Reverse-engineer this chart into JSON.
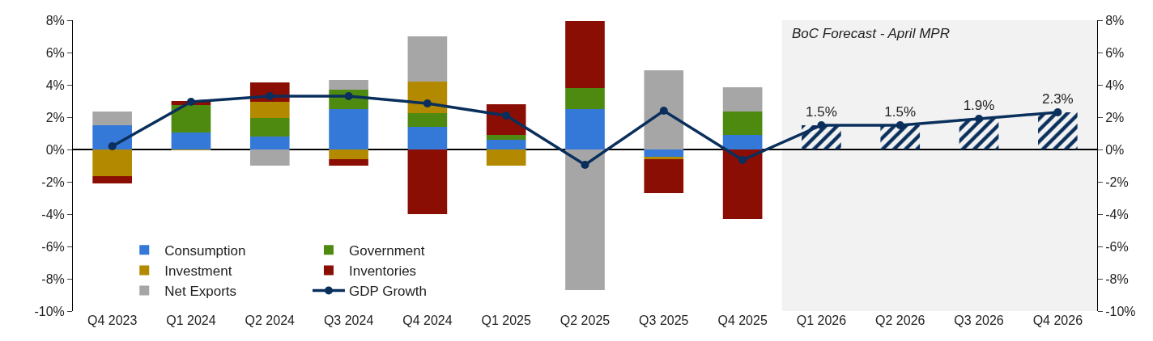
{
  "chart_data": {
    "type": "bar",
    "stacked": true,
    "categories": [
      "Q4 2023",
      "Q1 2024",
      "Q2 2024",
      "Q3 2024",
      "Q4 2024",
      "Q1 2025",
      "Q2 2025",
      "Q3 2025",
      "Q4 2025",
      "Q1 2026",
      "Q2 2026",
      "Q3 2026",
      "Q4 2026"
    ],
    "series": [
      {
        "name": "Consumption",
        "color": "#3579d8",
        "values": [
          1.5,
          1.05,
          0.8,
          2.5,
          1.4,
          0.6,
          2.5,
          -0.45,
          0.9,
          null,
          null,
          null,
          null
        ]
      },
      {
        "name": "Government",
        "color": "#4f8a10",
        "values": [
          0,
          1.7,
          1.15,
          1.2,
          0.85,
          0.3,
          1.3,
          0,
          1.45,
          null,
          null,
          null,
          null
        ]
      },
      {
        "name": "Investment",
        "color": "#b38900",
        "values": [
          -1.65,
          -0.05,
          1.0,
          -0.6,
          1.95,
          -1.0,
          0,
          -0.15,
          0,
          null,
          null,
          null,
          null
        ]
      },
      {
        "name": "Inventories",
        "color": "#8b0e04",
        "values": [
          -0.45,
          0.25,
          1.2,
          -0.4,
          -4.0,
          1.9,
          4.15,
          -2.1,
          -4.3,
          null,
          null,
          null,
          null
        ]
      },
      {
        "name": "Net Exports",
        "color": "#a6a6a6",
        "values": [
          0.85,
          0,
          -1.0,
          0.6,
          2.8,
          0,
          -8.7,
          4.9,
          1.5,
          null,
          null,
          null,
          null
        ]
      },
      {
        "name": "GDP Growth",
        "type": "line",
        "color": "#0a2f5c",
        "marker": "circle",
        "values": [
          0.2,
          2.95,
          3.3,
          3.3,
          2.85,
          2.1,
          -0.95,
          2.4,
          -0.65,
          1.5,
          1.5,
          1.9,
          2.3
        ],
        "value_labels": [
          null,
          null,
          null,
          null,
          null,
          null,
          null,
          null,
          null,
          "1.5%",
          "1.5%",
          "1.9%",
          "2.3%"
        ]
      },
      {
        "color": "#0a2f5c",
        "values": [
          null,
          null,
          null,
          null,
          null,
          null,
          null,
          null,
          null,
          1.5,
          1.5,
          1.9,
          2.3
        ]
      }
    ],
    "ylim": [
      -10,
      8
    ],
    "yticks": [
      {
        "value": -10,
        "label": "-10%"
      },
      {
        "value": -8,
        "label": "-8%"
      },
      {
        "value": -6,
        "label": "-6%"
      },
      {
        "value": -4,
        "label": "-4%"
      },
      {
        "value": -2,
        "label": "-2%"
      },
      {
        "value": 0,
        "label": "0%"
      },
      {
        "value": 2,
        "label": "2%"
      },
      {
        "value": 4,
        "label": "4%"
      },
      {
        "value": 6,
        "label": "6%"
      },
      {
        "value": 8,
        "label": "8%"
      }
    ],
    "y2lim": [
      -10,
      8
    ],
    "y2ticks": [
      {
        "value": -10,
        "label": "-10%"
      },
      {
        "value": -8,
        "label": "-8%"
      },
      {
        "value": -6,
        "label": "-6%"
      },
      {
        "value": -4,
        "label": "-4%"
      },
      {
        "value": -2,
        "label": "-2%"
      },
      {
        "value": 0,
        "label": "0%"
      },
      {
        "value": 2,
        "label": "2%"
      },
      {
        "value": 4,
        "label": "4%"
      },
      {
        "value": 6,
        "label": "6%"
      },
      {
        "value": 8,
        "label": "8%"
      }
    ],
    "bands": [
      {
        "axis": "x",
        "from": "Q1 2026",
        "to": "Q4 2026",
        "label": "BoC Forecast - April MPR",
        "color": "#f2f2f2"
      }
    ],
    "legend": "bottom left"
  }
}
